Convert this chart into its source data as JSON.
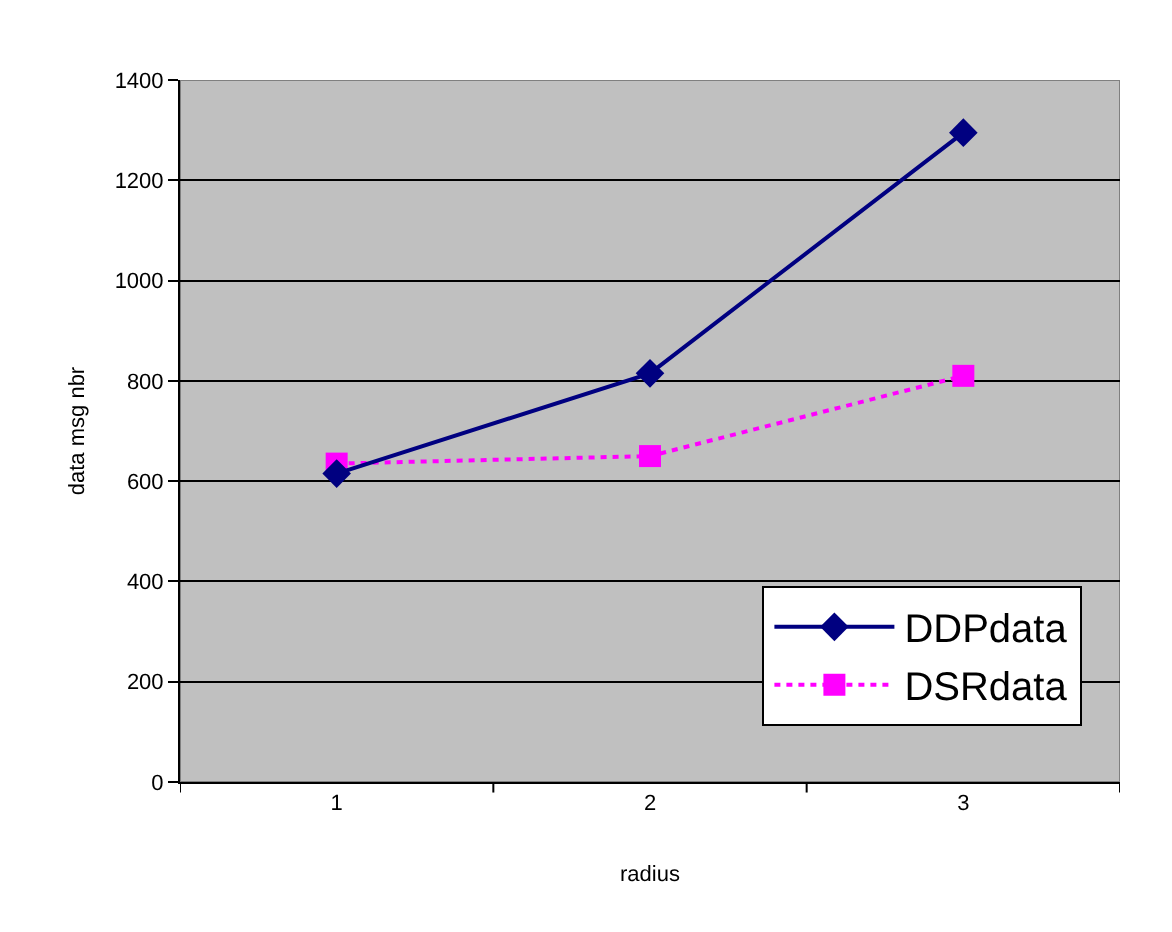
{
  "chart_data": {
    "type": "line",
    "xlabel": "radius",
    "ylabel": "data msg nbr",
    "categories": [
      "1",
      "2",
      "3"
    ],
    "series": [
      {
        "name": "DDPdata",
        "color": "#000080",
        "values": [
          615,
          815,
          1295
        ],
        "marker": "diamond",
        "line_style": "solid"
      },
      {
        "name": "DSRdata",
        "color": "#ff00ff",
        "values": [
          635,
          650,
          810
        ],
        "marker": "square",
        "line_style": "dotted"
      }
    ],
    "ylim": [
      0,
      1400
    ],
    "yticks": [
      0,
      200,
      400,
      600,
      800,
      1000,
      1200,
      1400
    ],
    "grid": "y",
    "legend": "bottom right"
  }
}
